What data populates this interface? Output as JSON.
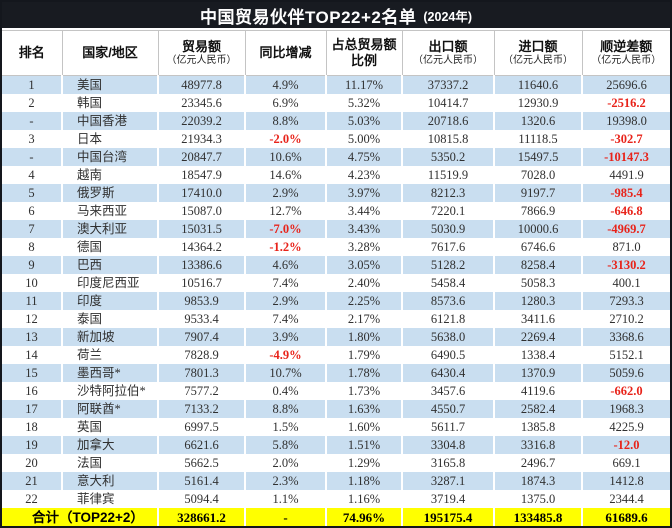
{
  "title": {
    "main": "中国贸易伙伴TOP22+2名单",
    "suffix": "(2024年)"
  },
  "chart_data": {
    "type": "table",
    "title": "中国贸易伙伴TOP22+2名单 (2024年)",
    "columns": [
      {
        "label": "排名",
        "sub": ""
      },
      {
        "label": "国家/地区",
        "sub": ""
      },
      {
        "label": "贸易额",
        "sub": "（亿元人民币）"
      },
      {
        "label": "同比增减",
        "sub": ""
      },
      {
        "label": "占总贸易额比例",
        "sub": ""
      },
      {
        "label": "出口额",
        "sub": "（亿元人民币）"
      },
      {
        "label": "进口额",
        "sub": "（亿元人民币）"
      },
      {
        "label": "顺逆差额",
        "sub": "（亿元人民币）"
      }
    ],
    "rows": [
      [
        "1",
        "美国",
        "48977.8",
        "4.9%",
        "11.17%",
        "37337.2",
        "11640.6",
        "25696.6"
      ],
      [
        "2",
        "韩国",
        "23345.6",
        "6.9%",
        "5.32%",
        "10414.7",
        "12930.9",
        "-2516.2"
      ],
      [
        "-",
        "中国香港",
        "22039.2",
        "8.8%",
        "5.03%",
        "20718.6",
        "1320.6",
        "19398.0"
      ],
      [
        "3",
        "日本",
        "21934.3",
        "-2.0%",
        "5.00%",
        "10815.8",
        "11118.5",
        "-302.7"
      ],
      [
        "-",
        "中国台湾",
        "20847.7",
        "10.6%",
        "4.75%",
        "5350.2",
        "15497.5",
        "-10147.3"
      ],
      [
        "4",
        "越南",
        "18547.9",
        "14.6%",
        "4.23%",
        "11519.9",
        "7028.0",
        "4491.9"
      ],
      [
        "5",
        "俄罗斯",
        "17410.0",
        "2.9%",
        "3.97%",
        "8212.3",
        "9197.7",
        "-985.4"
      ],
      [
        "6",
        "马来西亚",
        "15087.0",
        "12.7%",
        "3.44%",
        "7220.1",
        "7866.9",
        "-646.8"
      ],
      [
        "7",
        "澳大利亚",
        "15031.5",
        "-7.0%",
        "3.43%",
        "5030.9",
        "10000.6",
        "-4969.7"
      ],
      [
        "8",
        "德国",
        "14364.2",
        "-1.2%",
        "3.28%",
        "7617.6",
        "6746.6",
        "871.0"
      ],
      [
        "9",
        "巴西",
        "13386.6",
        "4.6%",
        "3.05%",
        "5128.2",
        "8258.4",
        "-3130.2"
      ],
      [
        "10",
        "印度尼西亚",
        "10516.7",
        "7.4%",
        "2.40%",
        "5458.4",
        "5058.3",
        "400.1"
      ],
      [
        "11",
        "印度",
        "9853.9",
        "2.9%",
        "2.25%",
        "8573.6",
        "1280.3",
        "7293.3"
      ],
      [
        "12",
        "泰国",
        "9533.4",
        "7.4%",
        "2.17%",
        "6121.8",
        "3411.6",
        "2710.2"
      ],
      [
        "13",
        "新加坡",
        "7907.4",
        "3.9%",
        "1.80%",
        "5638.0",
        "2269.4",
        "3368.6"
      ],
      [
        "14",
        "荷兰",
        "7828.9",
        "-4.9%",
        "1.79%",
        "6490.5",
        "1338.4",
        "5152.1"
      ],
      [
        "15",
        "墨西哥*",
        "7801.3",
        "10.7%",
        "1.78%",
        "6430.4",
        "1370.9",
        "5059.6"
      ],
      [
        "16",
        "沙特阿拉伯*",
        "7577.2",
        "0.4%",
        "1.73%",
        "3457.6",
        "4119.6",
        "-662.0"
      ],
      [
        "17",
        "阿联酋*",
        "7133.2",
        "8.8%",
        "1.63%",
        "4550.7",
        "2582.4",
        "1968.3"
      ],
      [
        "18",
        "英国",
        "6997.5",
        "1.5%",
        "1.60%",
        "5611.7",
        "1385.8",
        "4225.9"
      ],
      [
        "19",
        "加拿大",
        "6621.6",
        "5.8%",
        "1.51%",
        "3304.8",
        "3316.8",
        "-12.0"
      ],
      [
        "20",
        "法国",
        "5662.5",
        "2.0%",
        "1.29%",
        "3165.8",
        "2496.7",
        "669.1"
      ],
      [
        "21",
        "意大利",
        "5161.4",
        "2.3%",
        "1.18%",
        "3287.1",
        "1874.3",
        "1412.8"
      ],
      [
        "22",
        "菲律宾",
        "5094.4",
        "1.1%",
        "1.16%",
        "3719.4",
        "1375.0",
        "2344.4"
      ]
    ],
    "total": {
      "label": "合计（TOP22+2）",
      "trade": "328661.2",
      "yoy": "-",
      "share": "74.96%",
      "export": "195175.4",
      "import": "133485.8",
      "balance": "61689.6"
    }
  },
  "colors": {
    "stripe_blue": "#c9def0",
    "total_yellow": "#ffff00",
    "negative_red": "#e8231a",
    "title_bg": "#181b21",
    "header_text": "#111111",
    "body_text": "#303030",
    "grid_line": "#c4c4c4"
  }
}
